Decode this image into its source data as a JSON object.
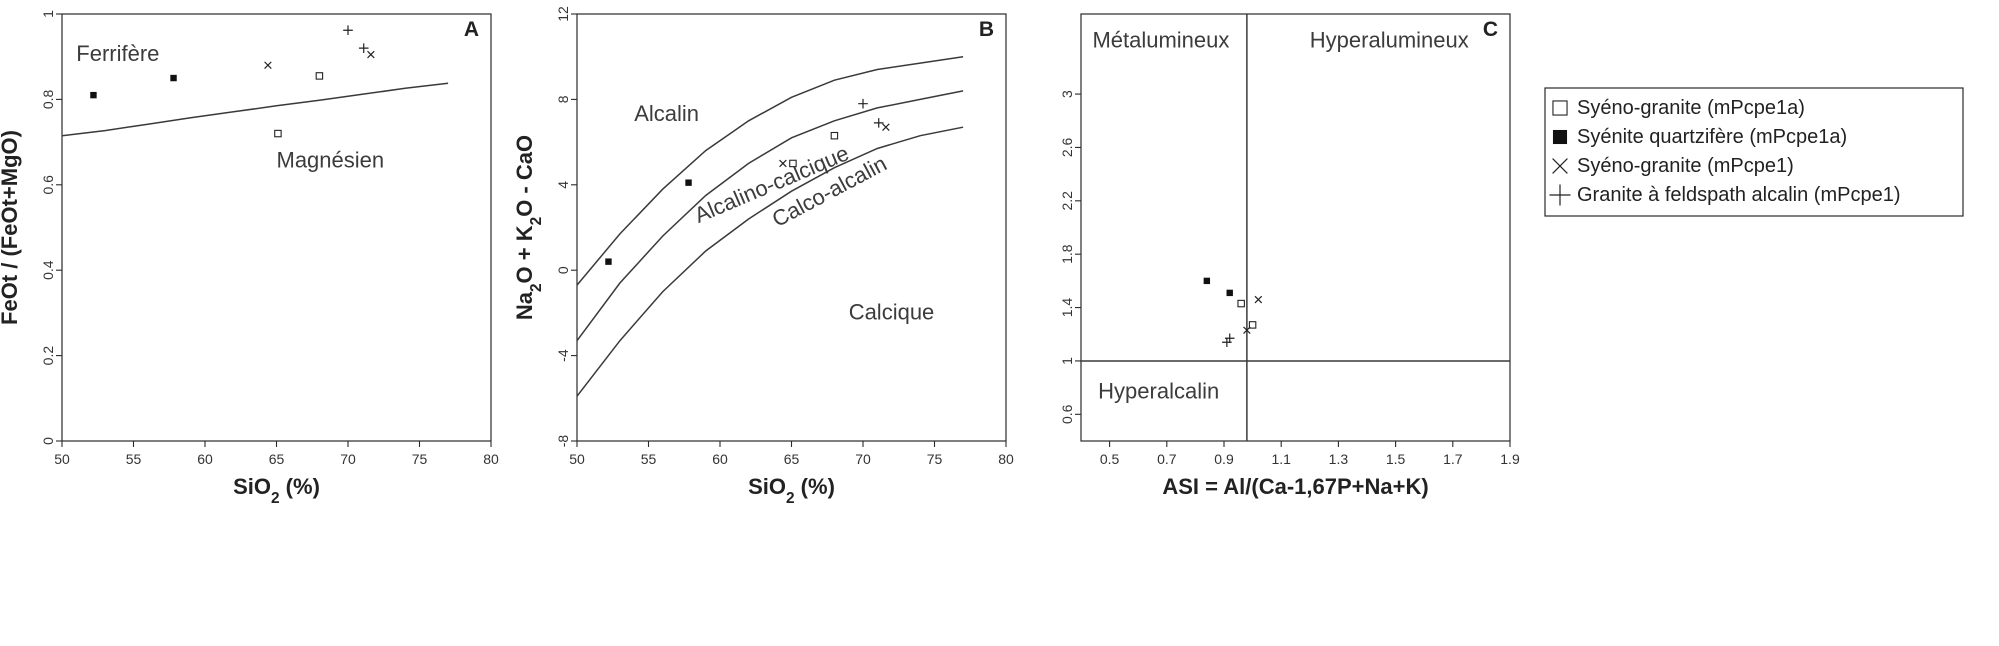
{
  "chart_data": [
    {
      "type": "scatter",
      "letter": "A",
      "xlabel": "SiO2 (%)",
      "ylabel": "FeOt / (FeOt+MgO)",
      "xlim": [
        50,
        80
      ],
      "ylim": [
        0,
        1
      ],
      "xticks": [
        50,
        55,
        60,
        65,
        70,
        75,
        80
      ],
      "yticks": [
        0,
        0.2,
        0.4,
        0.6,
        0.8,
        1
      ],
      "ytick_labels": [
        "0",
        "0.2",
        "0.4",
        "0.6",
        "0.8",
        "1"
      ],
      "region_labels": [
        {
          "text": "Ferrifère",
          "x": 51,
          "y": 0.89
        },
        {
          "text": "Magnésien",
          "x": 65,
          "y": 0.64
        }
      ],
      "boundaries": [
        {
          "points": [
            [
              50,
              0.715
            ],
            [
              53,
              0.727
            ],
            [
              56,
              0.742
            ],
            [
              59,
              0.757
            ],
            [
              62,
              0.771
            ],
            [
              65,
              0.785
            ],
            [
              68,
              0.798
            ],
            [
              71,
              0.812
            ],
            [
              74,
              0.826
            ],
            [
              77,
              0.838
            ]
          ]
        }
      ],
      "series": [
        {
          "marker": "open-square",
          "points": [
            [
              65.1,
              0.72
            ],
            [
              68.0,
              0.855
            ]
          ]
        },
        {
          "marker": "filled-square",
          "points": [
            [
              52.2,
              0.81
            ],
            [
              57.8,
              0.85
            ]
          ]
        },
        {
          "marker": "x",
          "points": [
            [
              64.4,
              0.88
            ],
            [
              71.6,
              0.905
            ]
          ]
        },
        {
          "marker": "plus",
          "points": [
            [
              70.0,
              0.962
            ],
            [
              71.1,
              0.92
            ]
          ]
        }
      ]
    },
    {
      "type": "scatter",
      "letter": "B",
      "xlabel": "SiO2 (%)",
      "ylabel": "Na2O + K2O - CaO",
      "xlim": [
        50,
        80
      ],
      "ylim": [
        -8,
        12
      ],
      "xticks": [
        50,
        55,
        60,
        65,
        70,
        75,
        80
      ],
      "yticks": [
        -8,
        -4,
        0,
        4,
        8,
        12
      ],
      "ytick_labels": [
        "-8",
        "-4",
        "0",
        "4",
        "8",
        "12"
      ],
      "region_labels": [
        {
          "text": "Alcalin",
          "x": 54,
          "y": 7.0,
          "rotate": 0
        },
        {
          "text": "Alcalino-calcique",
          "x": 58.5,
          "y": 2.2,
          "rotate": -23
        },
        {
          "text": "Calco-alcalin",
          "x": 64,
          "y": 2.0,
          "rotate": -28
        },
        {
          "text": "Calcique",
          "x": 69,
          "y": -2.3,
          "rotate": 0
        }
      ],
      "boundaries": [
        {
          "points": [
            [
              50,
              -0.7
            ],
            [
              53,
              1.7
            ],
            [
              56,
              3.8
            ],
            [
              59,
              5.6
            ],
            [
              62,
              7.0
            ],
            [
              65,
              8.1
            ],
            [
              68,
              8.9
            ],
            [
              71,
              9.4
            ],
            [
              74,
              9.7
            ],
            [
              77,
              10.0
            ]
          ]
        },
        {
          "points": [
            [
              50,
              -3.3
            ],
            [
              53,
              -0.6
            ],
            [
              56,
              1.6
            ],
            [
              59,
              3.5
            ],
            [
              62,
              5.0
            ],
            [
              65,
              6.2
            ],
            [
              68,
              7.0
            ],
            [
              71,
              7.6
            ],
            [
              74,
              8.0
            ],
            [
              77,
              8.4
            ]
          ]
        },
        {
          "points": [
            [
              50,
              -5.9
            ],
            [
              53,
              -3.3
            ],
            [
              56,
              -1.0
            ],
            [
              59,
              0.9
            ],
            [
              62,
              2.4
            ],
            [
              65,
              3.7
            ],
            [
              68,
              4.8
            ],
            [
              71,
              5.7
            ],
            [
              74,
              6.3
            ],
            [
              77,
              6.7
            ]
          ]
        }
      ],
      "series": [
        {
          "marker": "open-square",
          "points": [
            [
              65.1,
              5.0
            ],
            [
              68.0,
              6.3
            ]
          ]
        },
        {
          "marker": "filled-square",
          "points": [
            [
              52.2,
              0.4
            ],
            [
              57.8,
              4.1
            ]
          ]
        },
        {
          "marker": "x",
          "points": [
            [
              64.4,
              5.0
            ],
            [
              71.6,
              6.7
            ]
          ]
        },
        {
          "marker": "plus",
          "points": [
            [
              70.0,
              7.8
            ],
            [
              71.1,
              6.9
            ]
          ]
        }
      ]
    },
    {
      "type": "scatter",
      "letter": "C",
      "xlabel": "ASI = Al/(Ca-1,67P+Na+K)",
      "ylabel": "",
      "xlim": [
        0.4,
        1.9
      ],
      "ylim": [
        0.4,
        3.6
      ],
      "xticks": [
        0.5,
        0.7,
        0.9,
        1.1,
        1.3,
        1.5,
        1.7,
        1.9
      ],
      "xtick_labels": [
        "0.5",
        "0.7",
        "0.9",
        "1.1",
        "1.3",
        "1.5",
        "1.7",
        "1.9"
      ],
      "yticks": [
        0.6,
        1,
        1.4,
        1.8,
        2.2,
        2.6,
        3
      ],
      "ytick_labels": [
        "0.6",
        "1",
        "1.4",
        "1.8",
        "2.2",
        "2.6",
        "3"
      ],
      "divider_x": 0.98,
      "divider_y": 1.0,
      "region_labels": [
        {
          "text": "Métalumineux",
          "x": 0.44,
          "y": 3.35
        },
        {
          "text": "Hyperalumineux",
          "x": 1.2,
          "y": 3.35
        },
        {
          "text": "Hyperalcalin",
          "x": 0.46,
          "y": 0.72
        }
      ],
      "legend": [
        {
          "marker": "open-square",
          "label": "Syéno-granite (mPcpe1a)"
        },
        {
          "marker": "filled-square",
          "label": "Syénite quartzifère (mPcpe1a)"
        },
        {
          "marker": "x",
          "label": "Syéno-granite (mPcpe1)"
        },
        {
          "marker": "plus",
          "label": "Granite à feldspath alcalin (mPcpe1)"
        }
      ],
      "series": [
        {
          "marker": "open-square",
          "points": [
            [
              0.96,
              1.43
            ],
            [
              1.0,
              1.27
            ]
          ]
        },
        {
          "marker": "filled-square",
          "points": [
            [
              0.84,
              1.6
            ],
            [
              0.92,
              1.51
            ]
          ]
        },
        {
          "marker": "x",
          "points": [
            [
              1.02,
              1.46
            ],
            [
              0.98,
              1.23
            ]
          ]
        },
        {
          "marker": "plus",
          "points": [
            [
              0.91,
              1.14
            ],
            [
              0.92,
              1.17
            ]
          ]
        }
      ]
    }
  ]
}
